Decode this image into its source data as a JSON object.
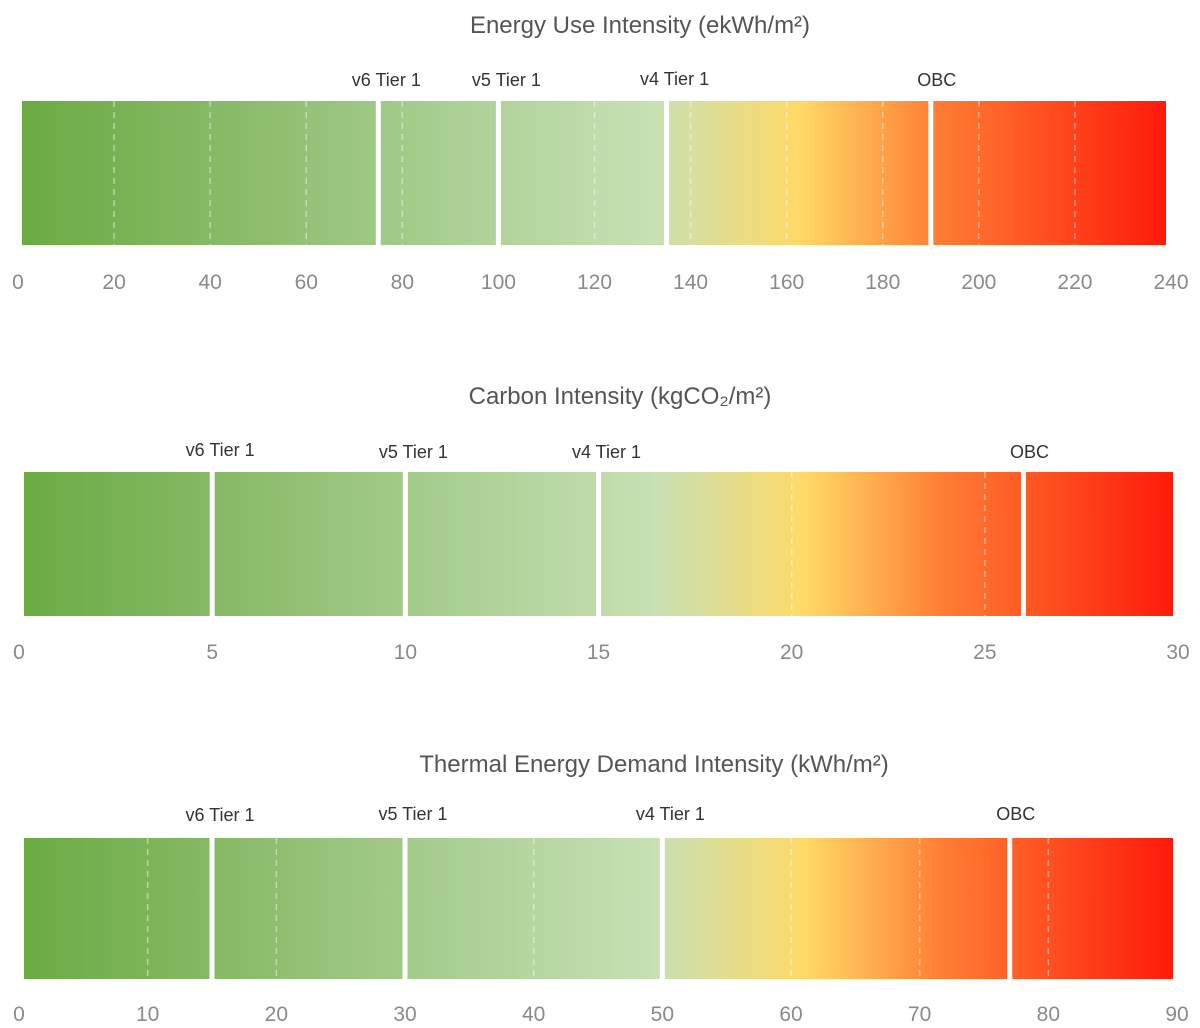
{
  "chart_data": [
    {
      "type": "bar",
      "title": "Energy Use Intensity (ekWh/m²)",
      "xlim": [
        0,
        240
      ],
      "ticks": [
        0,
        20,
        40,
        60,
        80,
        100,
        120,
        140,
        160,
        180,
        200,
        220,
        240
      ],
      "grid": true,
      "thresholds": [
        {
          "label": "v6 Tier 1",
          "value": 75
        },
        {
          "label": "v5 Tier 1",
          "value": 100
        },
        {
          "label": "v4 Tier 1",
          "value": 135
        },
        {
          "label": "OBC",
          "value": 190
        }
      ]
    },
    {
      "type": "bar",
      "title": "Carbon Intensity (kgCO₂/m²)",
      "xlim": [
        0,
        30
      ],
      "ticks": [
        0,
        5,
        10,
        15,
        20,
        25,
        30
      ],
      "grid": true,
      "thresholds": [
        {
          "label": "v6 Tier 1",
          "value": 5
        },
        {
          "label": "v5 Tier 1",
          "value": 10
        },
        {
          "label": "v4 Tier 1",
          "value": 15
        },
        {
          "label": "OBC",
          "value": 26
        }
      ]
    },
    {
      "type": "bar",
      "title": "Thermal Energy Demand Intensity (kWh/m²)",
      "xlim": [
        0,
        90
      ],
      "ticks": [
        0,
        10,
        20,
        30,
        40,
        50,
        60,
        70,
        80,
        90
      ],
      "grid": true,
      "thresholds": [
        {
          "label": "v6 Tier 1",
          "value": 15
        },
        {
          "label": "v5 Tier 1",
          "value": 30
        },
        {
          "label": "v4 Tier 1",
          "value": 50
        },
        {
          "label": "OBC",
          "value": 77
        }
      ]
    }
  ],
  "colors": {
    "gradient": [
      "#6aab42",
      "#8cbc6c",
      "#aad094",
      "#c8e0b4",
      "#ffd966",
      "#ff7d33",
      "#ff1a0a"
    ],
    "separator": "#ffffff",
    "gridline": "#ffffff"
  }
}
